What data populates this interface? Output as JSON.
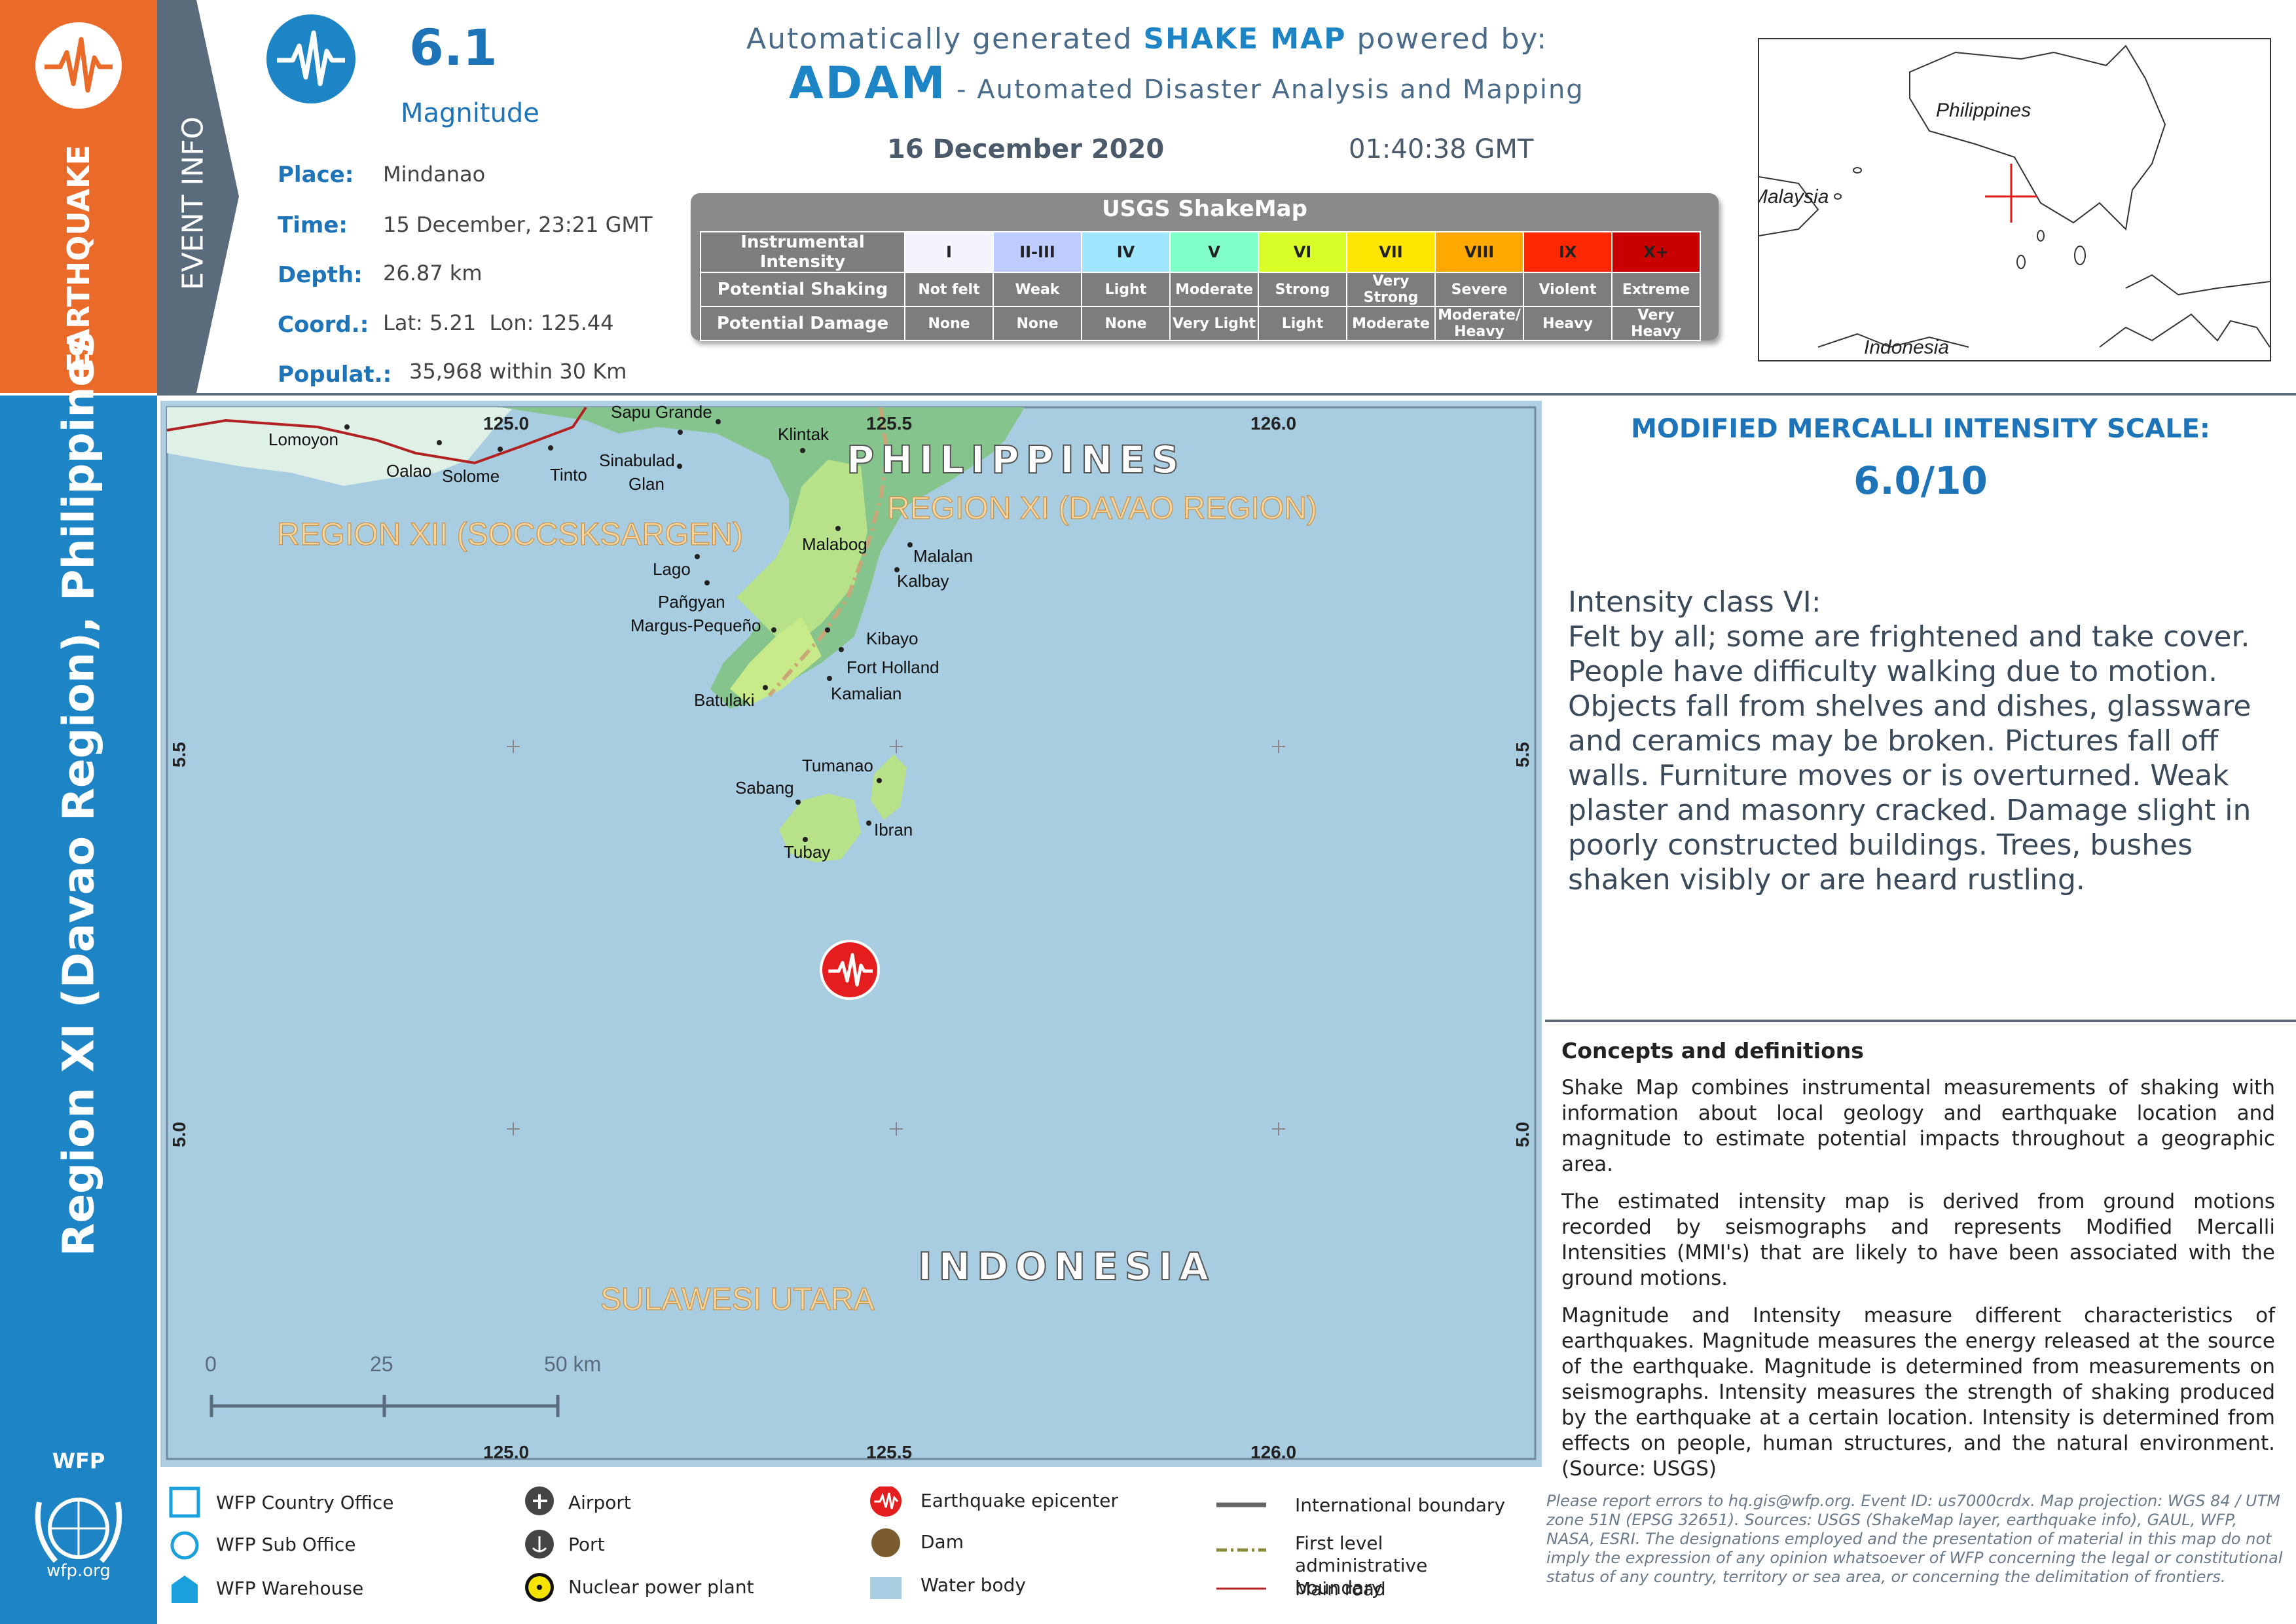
{
  "sidebar": {
    "hazard": "EARTHQUAKE",
    "region_title": "Region XI (Davao Region), Philippines",
    "event_info": "EVENT INFO",
    "org_name": "WFP",
    "org_url": "wfp.org"
  },
  "event": {
    "magnitude": "6.1",
    "magnitude_label": "Magnitude",
    "place_label": "Place:",
    "place": "Mindanao",
    "time_label": "Time:",
    "time": "15 December, 23:21 GMT",
    "depth_label": "Depth:",
    "depth": "26.87 km",
    "coord_label": "Coord.:",
    "coord": "Lat: 5.21  Lon: 125.44",
    "popul_label": "Populat.:",
    "popul": "35,968 within 30 Km"
  },
  "header": {
    "line1_pre": "Automatically generated ",
    "line1_bold": "SHAKE MAP",
    "line1_post": " powered by:",
    "adam": "ADAM",
    "adam_sub": " - Automated Disaster Analysis and Mapping",
    "date": "16 December 2020",
    "time": "01:40:38 GMT"
  },
  "shakemap": {
    "title": "USGS ShakeMap",
    "row_labels": [
      "Instrumental Intensity",
      "Potential Shaking",
      "Potential Damage"
    ],
    "intensity": [
      "I",
      "II-III",
      "IV",
      "V",
      "VI",
      "VII",
      "VIII",
      "IX",
      "X+"
    ],
    "shaking": [
      "Not felt",
      "Weak",
      "Light",
      "Moderate",
      "Strong",
      "Very Strong",
      "Severe",
      "Violent",
      "Extreme"
    ],
    "damage": [
      "None",
      "None",
      "None",
      "Very Light",
      "Light",
      "Moderate",
      "Moderate/ Heavy",
      "Heavy",
      "Very Heavy"
    ],
    "colors": [
      "#f4f4ff",
      "#bfccff",
      "#a0e6ff",
      "#80ffc8",
      "#d8ff28",
      "#ffe600",
      "#ffa800",
      "#ff2800",
      "#c80000"
    ]
  },
  "inset": {
    "labels": [
      "Philippines",
      "Malaysia",
      "Indonesia"
    ]
  },
  "map": {
    "country_labels": [
      "PHILIPPINES",
      "INDONESIA"
    ],
    "region_labels": [
      "REGION XII (SOCCSKSARGEN)",
      "REGION XI (DAVAO REGION)",
      "SULAWESI UTARA"
    ],
    "places": [
      "Sapu Grande",
      "Lomoyon",
      "Oalao",
      "Solome",
      "Tinto",
      "Sinabulad",
      "Glan",
      "Klintak",
      "Malabog",
      "Malalan",
      "Kalbay",
      "Lago",
      "Pañgyan",
      "Margus-Pequeño",
      "Kibayo",
      "Fort Holland",
      "Kamalian",
      "Batulaki",
      "Tumanao",
      "Sabang",
      "Ibran",
      "Tubay"
    ],
    "lon_ticks": [
      "125.0",
      "125.5",
      "126.0"
    ],
    "lat_ticks": [
      "5.5",
      "5.0"
    ],
    "scale_labels": [
      "0",
      "25",
      "50 km"
    ]
  },
  "mmi": {
    "title": "MODIFIED MERCALLI INTENSITY SCALE:",
    "value": "6.0/10",
    "class_title": "Intensity class VI:",
    "description": "Felt by all; some are frightened and take cover. People have difficulty walking due to motion. Objects fall from shelves and dishes, glassware and ceramics may be broken. Pictures fall off walls. Furniture moves or is overturned. Weak plaster and masonry cracked. Damage slight in poorly constructed buildings. Trees, bushes shaken visibly or are heard rustling."
  },
  "concepts": {
    "title": "Concepts and definitions",
    "p1": "Shake Map combines instrumental measurements of shaking with information about local geology and earthquake location and magnitude to estimate potential impacts throughout a geographic area.",
    "p2": "The estimated intensity map is derived from ground motions recorded by seismographs and represents Modified Mercalli Intensities (MMI's) that are likely to have been associated with the ground motions.",
    "p3": "Magnitude and Intensity measure different characteristics of earthquakes. Magnitude measures the energy released at the source of the earthquake. Magnitude is determined from measurements on seismographs. Intensity measures the strength of shaking produced by the earthquake at a certain location. Intensity is determined from effects on people, human structures, and the natural environment. (Source: USGS)"
  },
  "legend": {
    "country_office": "WFP Country Office",
    "sub_office": "WFP Sub Office",
    "warehouse": "WFP Warehouse",
    "airport": "Airport",
    "port": "Port",
    "nuclear": "Nuclear power plant",
    "epicenter": "Earthquake epicenter",
    "dam": "Dam",
    "water": "Water body",
    "intl_boundary": "International boundary",
    "admin_boundary": "First level administrative boundary",
    "main_road": "Main road"
  },
  "disclaimer": "Please report errors to hq.gis@wfp.org. Event ID: us7000crdx. Map projection: WGS 84 / UTM zone 51N (EPSG 32651). Sources: USGS (ShakeMap layer, earthquake info), GAUL, WFP, NASA, ESRI. The designations employed and the presentation of material in this map do not imply the expression of any opinion whatsoever of WFP concerning the legal or constitutional status of any country, territory or sea area, or concerning the delimitation of frontiers."
}
